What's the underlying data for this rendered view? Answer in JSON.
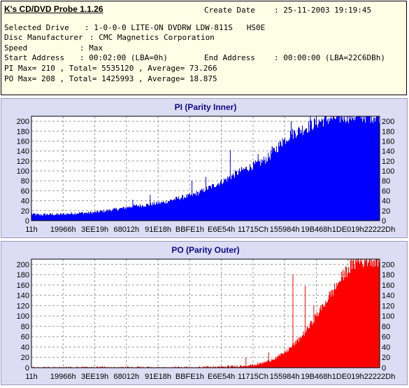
{
  "header": {
    "app_title": "K's CD/DVD Probe 1.1.26",
    "create_date_label": "Create Date",
    "create_date_value": ": 25-11-2003 19:19:45",
    "selected_drive_label": "Selected Drive",
    "selected_drive_value": ": 1-0-0-0 LITE-ON DVDRW LDW-811S   HS0E",
    "disc_manufacturer_label": "Disc Manufacturer",
    "disc_manufacturer_value": ": CMC Magnetics Corporation",
    "speed_label": "Speed",
    "speed_value": ": Max",
    "start_address_label": "Start Address",
    "start_address_value": ": 00:02:00 (LBA=0h)",
    "end_address_label": "End Address",
    "end_address_value": ": 00:00:00 (LBA=22C6DBh)",
    "pi_summary": "PI Max= 210 , Total= 5535120 , Average= 73.266",
    "po_summary": "PO Max= 208 , Total= 1425993 , Average= 18.875"
  },
  "chart_data": [
    {
      "type": "area",
      "title": "PI (Parity Inner)",
      "color": "#0000ff",
      "ylim": [
        0,
        210
      ],
      "yticks": [
        0,
        20,
        40,
        60,
        80,
        100,
        120,
        140,
        160,
        180,
        200
      ],
      "xlabels": [
        "11h",
        "19966h",
        "3EE19h",
        "68012h",
        "91E18h",
        "BBFE1h",
        "E6E54h",
        "11715Ch",
        "155984h",
        "19B468h",
        "1DE019h",
        "22222Dh"
      ],
      "grid": true,
      "series": [
        {
          "x": [
            0,
            0.02,
            0.04,
            0.06,
            0.08,
            0.1,
            0.12,
            0.14,
            0.16,
            0.18,
            0.2,
            0.22,
            0.24,
            0.26,
            0.28,
            0.3,
            0.32,
            0.34,
            0.36,
            0.38,
            0.4,
            0.42,
            0.44,
            0.46,
            0.48,
            0.5,
            0.52,
            0.54,
            0.56,
            0.58,
            0.6,
            0.62,
            0.64,
            0.66,
            0.68,
            0.7,
            0.72,
            0.74,
            0.76,
            0.78,
            0.8,
            0.82,
            0.84,
            0.86,
            0.88,
            0.9,
            0.92,
            0.94,
            0.96,
            0.98,
            1.0
          ],
          "values": [
            13,
            11,
            12,
            12,
            12,
            13,
            14,
            15,
            15,
            16,
            18,
            20,
            22,
            24,
            27,
            29,
            30,
            32,
            34,
            36,
            40,
            44,
            47,
            50,
            55,
            62,
            68,
            75,
            82,
            90,
            98,
            104,
            110,
            116,
            125,
            140,
            155,
            168,
            176,
            182,
            188,
            195,
            200,
            203,
            205,
            207,
            207,
            208,
            208,
            208,
            208
          ],
          "spikes": [
            [
              0.29,
              42
            ],
            [
              0.34,
              52
            ],
            [
              0.46,
              80
            ],
            [
              0.5,
              88
            ],
            [
              0.54,
              70
            ],
            [
              0.57,
              142
            ],
            [
              0.65,
              134
            ],
            [
              0.69,
              150
            ],
            [
              0.72,
              166
            ],
            [
              0.745,
              200
            ],
            [
              0.8,
              210
            ]
          ]
        }
      ]
    },
    {
      "type": "area",
      "title": "PO (Parity Outer)",
      "color": "#ff0000",
      "ylim": [
        0,
        210
      ],
      "yticks": [
        0,
        20,
        40,
        60,
        80,
        100,
        120,
        140,
        160,
        180,
        200
      ],
      "xlabels": [
        "11h",
        "19966h",
        "3EE19h",
        "68012h",
        "91E18h",
        "BBFE1h",
        "E6E54h",
        "11715Ch",
        "155984h",
        "19B468h",
        "1DE019h",
        "22222Dh"
      ],
      "grid": true,
      "series": [
        {
          "x": [
            0,
            0.02,
            0.04,
            0.06,
            0.08,
            0.1,
            0.12,
            0.14,
            0.16,
            0.18,
            0.2,
            0.22,
            0.24,
            0.26,
            0.28,
            0.3,
            0.32,
            0.34,
            0.36,
            0.38,
            0.4,
            0.42,
            0.44,
            0.46,
            0.48,
            0.5,
            0.52,
            0.54,
            0.56,
            0.58,
            0.6,
            0.62,
            0.64,
            0.66,
            0.68,
            0.7,
            0.72,
            0.74,
            0.76,
            0.78,
            0.8,
            0.82,
            0.84,
            0.86,
            0.88,
            0.9,
            0.92,
            0.94,
            0.96,
            0.98,
            1.0
          ],
          "values": [
            0,
            0,
            0,
            0,
            0,
            0,
            0,
            0,
            0,
            0,
            0,
            0,
            0,
            0,
            0,
            0,
            0,
            0,
            0,
            0,
            0,
            0,
            0,
            0,
            1,
            1,
            1,
            1,
            2,
            2,
            3,
            4,
            5,
            8,
            12,
            18,
            25,
            35,
            48,
            62,
            80,
            100,
            120,
            140,
            160,
            180,
            195,
            203,
            205,
            206,
            207
          ],
          "spikes": [
            [
              0.615,
              20
            ],
            [
              0.68,
              30
            ],
            [
              0.75,
              180
            ],
            [
              0.785,
              158
            ],
            [
              0.81,
              120
            ],
            [
              0.905,
              168
            ],
            [
              0.93,
              208
            ]
          ]
        }
      ]
    }
  ]
}
